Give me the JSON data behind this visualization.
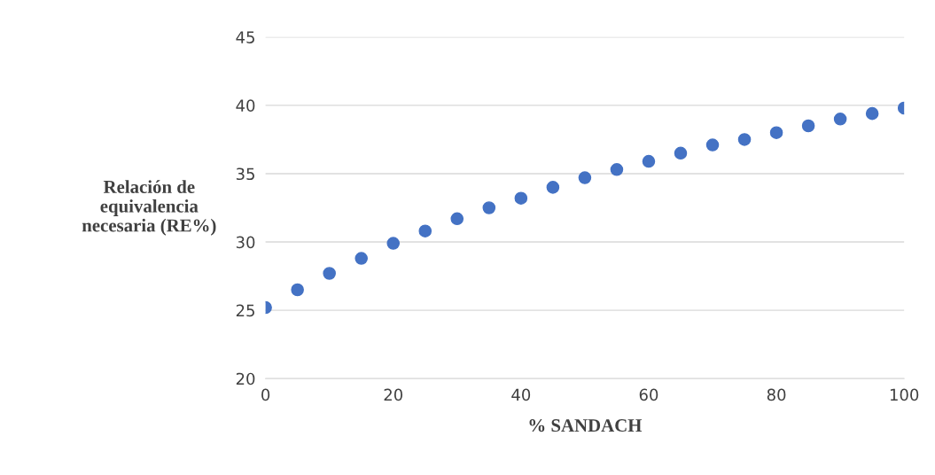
{
  "chart_data": {
    "type": "scatter",
    "xlabel": "% SANDACH",
    "ylabel": "Relación de\nequivalencia\nnecesaria (RE%)",
    "x": [
      0,
      5,
      10,
      15,
      20,
      25,
      30,
      35,
      40,
      45,
      50,
      55,
      60,
      65,
      70,
      75,
      80,
      85,
      90,
      95,
      100
    ],
    "series": [
      {
        "color": "#4472c4",
        "values": [
          25.2,
          26.5,
          27.7,
          28.8,
          29.9,
          30.8,
          31.7,
          32.5,
          33.2,
          34.0,
          34.7,
          35.3,
          35.9,
          36.5,
          37.1,
          37.5,
          38.0,
          38.5,
          39.0,
          39.4,
          39.8
        ]
      }
    ],
    "xlim": [
      0,
      100
    ],
    "xticks": [
      0,
      20,
      40,
      60,
      80,
      100
    ],
    "ylim": [
      20,
      45
    ],
    "yticks": [
      20,
      25,
      30,
      35,
      40,
      45
    ],
    "grid": "y",
    "marker": "circle"
  }
}
